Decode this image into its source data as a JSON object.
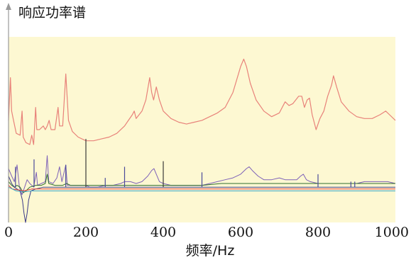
{
  "chart_data": {
    "type": "line",
    "title": "",
    "ylabel": "响应功率谱",
    "xlabel": "频率/Hz",
    "xlim": [
      0,
      1000
    ],
    "ylim": [
      0,
      1
    ],
    "x_ticks": [
      "0",
      "200",
      "400",
      "600",
      "800",
      "1000"
    ],
    "grid": false,
    "legend": "none",
    "colors": {
      "plot_bg": "#fdf8d2",
      "axis": "#9a9a9a",
      "text": "#111111"
    },
    "series": [
      {
        "color": "#e8827a",
        "points": [
          [
            0,
            0.55
          ],
          [
            5,
            0.78
          ],
          [
            8,
            0.6
          ],
          [
            12,
            0.56
          ],
          [
            20,
            0.48
          ],
          [
            30,
            0.47
          ],
          [
            35,
            0.6
          ],
          [
            38,
            0.46
          ],
          [
            45,
            0.43
          ],
          [
            55,
            0.42
          ],
          [
            60,
            0.47
          ],
          [
            65,
            0.42
          ],
          [
            70,
            0.62
          ],
          [
            73,
            0.5
          ],
          [
            80,
            0.5
          ],
          [
            90,
            0.52
          ],
          [
            95,
            0.5
          ],
          [
            100,
            0.52
          ],
          [
            105,
            0.55
          ],
          [
            110,
            0.5
          ],
          [
            120,
            0.5
          ],
          [
            128,
            0.62
          ],
          [
            132,
            0.52
          ],
          [
            140,
            0.52
          ],
          [
            148,
            0.8
          ],
          [
            155,
            0.55
          ],
          [
            165,
            0.49
          ],
          [
            180,
            0.46
          ],
          [
            200,
            0.44
          ],
          [
            220,
            0.44
          ],
          [
            240,
            0.45
          ],
          [
            260,
            0.46
          ],
          [
            280,
            0.48
          ],
          [
            300,
            0.52
          ],
          [
            310,
            0.55
          ],
          [
            320,
            0.58
          ],
          [
            325,
            0.6
          ],
          [
            330,
            0.56
          ],
          [
            345,
            0.6
          ],
          [
            355,
            0.66
          ],
          [
            365,
            0.78
          ],
          [
            370,
            0.7
          ],
          [
            375,
            0.66
          ],
          [
            382,
            0.73
          ],
          [
            390,
            0.66
          ],
          [
            400,
            0.6
          ],
          [
            420,
            0.56
          ],
          [
            440,
            0.54
          ],
          [
            460,
            0.53
          ],
          [
            480,
            0.54
          ],
          [
            500,
            0.55
          ],
          [
            520,
            0.57
          ],
          [
            540,
            0.59
          ],
          [
            560,
            0.62
          ],
          [
            580,
            0.7
          ],
          [
            600,
            0.84
          ],
          [
            608,
            0.88
          ],
          [
            615,
            0.84
          ],
          [
            625,
            0.75
          ],
          [
            640,
            0.66
          ],
          [
            660,
            0.6
          ],
          [
            680,
            0.57
          ],
          [
            700,
            0.59
          ],
          [
            715,
            0.65
          ],
          [
            725,
            0.63
          ],
          [
            735,
            0.64
          ],
          [
            750,
            0.68
          ],
          [
            758,
            0.68
          ],
          [
            765,
            0.62
          ],
          [
            772,
            0.66
          ],
          [
            778,
            0.67
          ],
          [
            785,
            0.58
          ],
          [
            795,
            0.5
          ],
          [
            805,
            0.56
          ],
          [
            815,
            0.6
          ],
          [
            825,
            0.68
          ],
          [
            835,
            0.74
          ],
          [
            840,
            0.79
          ],
          [
            848,
            0.73
          ],
          [
            860,
            0.65
          ],
          [
            880,
            0.6
          ],
          [
            900,
            0.57
          ],
          [
            920,
            0.56
          ],
          [
            940,
            0.56
          ],
          [
            960,
            0.58
          ],
          [
            975,
            0.6
          ],
          [
            985,
            0.58
          ],
          [
            1000,
            0.55
          ]
        ]
      },
      {
        "color": "#7e62b8",
        "points": [
          [
            0,
            0.29
          ],
          [
            8,
            0.25
          ],
          [
            15,
            0.22
          ],
          [
            22,
            0.31
          ],
          [
            28,
            0.19
          ],
          [
            35,
            0.15
          ],
          [
            40,
            0.18
          ],
          [
            48,
            0.23
          ],
          [
            55,
            0.21
          ],
          [
            65,
            0.19
          ],
          [
            72,
            0.27
          ],
          [
            75,
            0.2
          ],
          [
            85,
            0.21
          ],
          [
            95,
            0.22
          ],
          [
            100,
            0.36
          ],
          [
            104,
            0.22
          ],
          [
            115,
            0.21
          ],
          [
            125,
            0.24
          ],
          [
            132,
            0.3
          ],
          [
            138,
            0.22
          ],
          [
            148,
            0.31
          ],
          [
            152,
            0.2
          ],
          [
            165,
            0.2
          ],
          [
            180,
            0.2
          ],
          [
            200,
            0.2
          ],
          [
            210,
            0.19
          ],
          [
            230,
            0.19
          ],
          [
            250,
            0.2
          ],
          [
            270,
            0.2
          ],
          [
            290,
            0.21
          ],
          [
            300,
            0.22
          ],
          [
            315,
            0.22
          ],
          [
            330,
            0.21
          ],
          [
            345,
            0.22
          ],
          [
            360,
            0.25
          ],
          [
            370,
            0.28
          ],
          [
            376,
            0.29
          ],
          [
            382,
            0.26
          ],
          [
            390,
            0.22
          ],
          [
            400,
            0.21
          ],
          [
            420,
            0.2
          ],
          [
            440,
            0.2
          ],
          [
            460,
            0.2
          ],
          [
            480,
            0.2
          ],
          [
            500,
            0.2
          ],
          [
            520,
            0.21
          ],
          [
            540,
            0.22
          ],
          [
            560,
            0.23
          ],
          [
            580,
            0.24
          ],
          [
            600,
            0.26
          ],
          [
            615,
            0.29
          ],
          [
            622,
            0.3
          ],
          [
            630,
            0.28
          ],
          [
            645,
            0.25
          ],
          [
            660,
            0.23
          ],
          [
            680,
            0.23
          ],
          [
            700,
            0.24
          ],
          [
            715,
            0.23
          ],
          [
            730,
            0.23
          ],
          [
            745,
            0.23
          ],
          [
            755,
            0.25
          ],
          [
            762,
            0.26
          ],
          [
            770,
            0.23
          ],
          [
            780,
            0.22
          ],
          [
            800,
            0.21
          ],
          [
            820,
            0.21
          ],
          [
            840,
            0.21
          ],
          [
            860,
            0.21
          ],
          [
            880,
            0.21
          ],
          [
            900,
            0.21
          ],
          [
            920,
            0.22
          ],
          [
            940,
            0.22
          ],
          [
            960,
            0.22
          ],
          [
            980,
            0.22
          ],
          [
            1000,
            0.21
          ]
        ]
      },
      {
        "color": "#2f6e2f",
        "points": [
          [
            0,
            0.22
          ],
          [
            8,
            0.2
          ],
          [
            15,
            0.19
          ],
          [
            22,
            0.2
          ],
          [
            30,
            0.19
          ],
          [
            38,
            0.16
          ],
          [
            45,
            0.17
          ],
          [
            55,
            0.19
          ],
          [
            70,
            0.2
          ],
          [
            85,
            0.2
          ],
          [
            95,
            0.21
          ],
          [
            100,
            0.26
          ],
          [
            104,
            0.21
          ],
          [
            120,
            0.2
          ],
          [
            140,
            0.2
          ],
          [
            150,
            0.21
          ],
          [
            160,
            0.2
          ],
          [
            200,
            0.2
          ],
          [
            250,
            0.2
          ],
          [
            300,
            0.2
          ],
          [
            350,
            0.2
          ],
          [
            400,
            0.2
          ],
          [
            450,
            0.2
          ],
          [
            500,
            0.2
          ],
          [
            550,
            0.21
          ],
          [
            600,
            0.21
          ],
          [
            650,
            0.21
          ],
          [
            700,
            0.21
          ],
          [
            750,
            0.21
          ],
          [
            800,
            0.21
          ],
          [
            850,
            0.21
          ],
          [
            900,
            0.21
          ],
          [
            950,
            0.21
          ],
          [
            1000,
            0.21
          ]
        ]
      },
      {
        "color": "#3a3a8a",
        "points": [
          [
            0,
            0.25
          ],
          [
            8,
            0.21
          ],
          [
            15,
            0.19
          ],
          [
            22,
            0.18
          ],
          [
            30,
            0.17
          ],
          [
            36,
            0.12
          ],
          [
            40,
            0.05
          ],
          [
            44,
            0.0
          ],
          [
            48,
            0.05
          ],
          [
            52,
            0.12
          ],
          [
            58,
            0.17
          ],
          [
            70,
            0.18
          ],
          [
            90,
            0.19
          ],
          [
            100,
            0.19
          ],
          [
            120,
            0.19
          ],
          [
            150,
            0.19
          ],
          [
            200,
            0.19
          ],
          [
            250,
            0.19
          ],
          [
            300,
            0.19
          ],
          [
            350,
            0.19
          ],
          [
            400,
            0.19
          ],
          [
            450,
            0.19
          ],
          [
            500,
            0.19
          ],
          [
            550,
            0.19
          ],
          [
            600,
            0.19
          ],
          [
            650,
            0.19
          ],
          [
            700,
            0.19
          ],
          [
            750,
            0.19
          ],
          [
            800,
            0.19
          ],
          [
            850,
            0.19
          ],
          [
            900,
            0.19
          ],
          [
            950,
            0.19
          ],
          [
            1000,
            0.19
          ]
        ]
      },
      {
        "color": "#d83a3a",
        "points": [
          [
            0,
            0.2
          ],
          [
            10,
            0.18
          ],
          [
            25,
            0.175
          ],
          [
            40,
            0.17
          ],
          [
            60,
            0.18
          ],
          [
            100,
            0.18
          ],
          [
            150,
            0.18
          ],
          [
            200,
            0.18
          ],
          [
            250,
            0.18
          ],
          [
            300,
            0.18
          ],
          [
            350,
            0.18
          ],
          [
            400,
            0.18
          ],
          [
            450,
            0.18
          ],
          [
            500,
            0.18
          ],
          [
            550,
            0.18
          ],
          [
            600,
            0.18
          ],
          [
            650,
            0.18
          ],
          [
            700,
            0.18
          ],
          [
            750,
            0.18
          ],
          [
            800,
            0.18
          ],
          [
            850,
            0.18
          ],
          [
            900,
            0.18
          ],
          [
            950,
            0.18
          ],
          [
            1000,
            0.18
          ]
        ]
      },
      {
        "color": "#3aa8c8",
        "points": [
          [
            0,
            0.19
          ],
          [
            20,
            0.17
          ],
          [
            40,
            0.165
          ],
          [
            60,
            0.17
          ],
          [
            100,
            0.17
          ],
          [
            150,
            0.17
          ],
          [
            200,
            0.17
          ],
          [
            300,
            0.17
          ],
          [
            400,
            0.17
          ],
          [
            500,
            0.17
          ],
          [
            600,
            0.17
          ],
          [
            700,
            0.17
          ],
          [
            800,
            0.17
          ],
          [
            900,
            0.17
          ],
          [
            1000,
            0.17
          ]
        ]
      }
    ],
    "spikes": [
      {
        "x": 18,
        "y": 0.3,
        "color": "#4a4a9a"
      },
      {
        "x": 66,
        "y": 0.34,
        "color": "#4a4a9a"
      },
      {
        "x": 148,
        "y": 0.31,
        "color": "#4a4a9a"
      },
      {
        "x": 200,
        "y": 0.45,
        "color": "#3a3a3a"
      },
      {
        "x": 250,
        "y": 0.24,
        "color": "#4a4a9a"
      },
      {
        "x": 300,
        "y": 0.3,
        "color": "#4a4a9a"
      },
      {
        "x": 400,
        "y": 0.33,
        "color": "#3a3a3a"
      },
      {
        "x": 500,
        "y": 0.27,
        "color": "#4a4a9a"
      },
      {
        "x": 800,
        "y": 0.26,
        "color": "#4a4a9a"
      },
      {
        "x": 885,
        "y": 0.22,
        "color": "#4a4a9a"
      },
      {
        "x": 895,
        "y": 0.22,
        "color": "#4a4a9a"
      }
    ]
  }
}
